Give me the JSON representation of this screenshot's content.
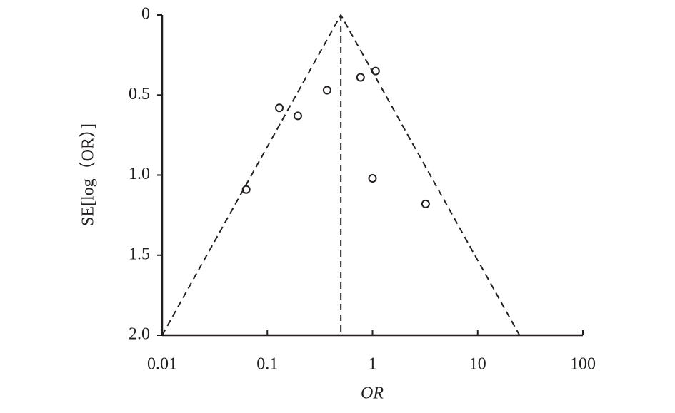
{
  "chart_data": {
    "type": "funnel",
    "x_label": "OR",
    "y_label": "SE[log（OR）]",
    "x_scale": "log",
    "xlim": [
      0.01,
      100
    ],
    "xticks": [
      0.01,
      0.1,
      1,
      10,
      100
    ],
    "ylim": [
      0,
      2
    ],
    "y_inverted": true,
    "yticks": [
      0,
      0.5,
      {
        "value": 1,
        "label": "1.0"
      },
      1.5,
      {
        "value": 2,
        "label": "2.0"
      }
    ],
    "x": [
      0.063,
      0.13,
      0.195,
      0.37,
      0.77,
      1.07,
      1.0,
      3.2
    ],
    "values": [
      1.09,
      0.58,
      0.63,
      0.47,
      0.39,
      0.35,
      1.02,
      1.18
    ],
    "pooled_or": 0.5,
    "funnel": {
      "x": [
        0.01,
        0.5,
        25
      ],
      "y": [
        2,
        0,
        2
      ]
    },
    "color": "#231f20"
  }
}
